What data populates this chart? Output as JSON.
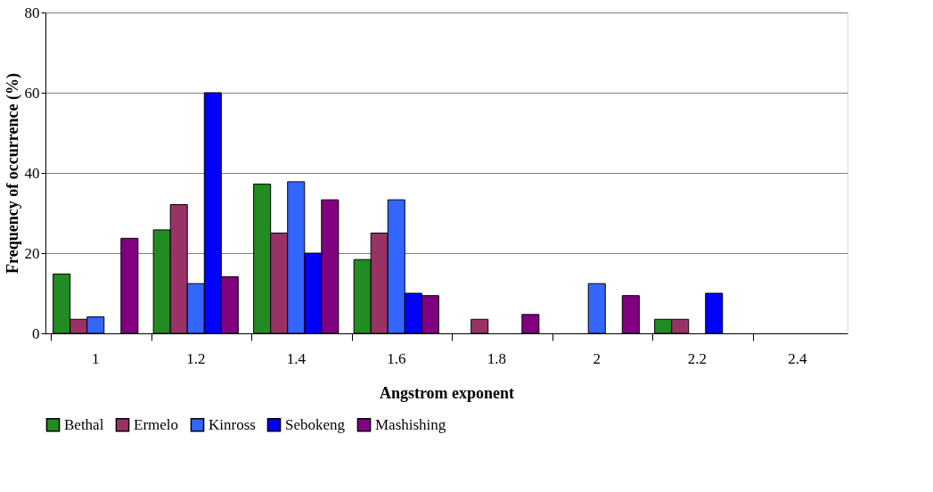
{
  "chart_data": {
    "type": "bar",
    "xlabel": "Angstrom exponent",
    "ylabel": "Frequency of occurrence (%)",
    "categories": [
      "1",
      "1.2",
      "1.4",
      "1.6",
      "1.8",
      "2",
      "2.2",
      "2.4"
    ],
    "series": [
      {
        "name": "Bethal",
        "color": "#228b22",
        "values": [
          14.8,
          25.8,
          37.2,
          18.4,
          null,
          null,
          3.5,
          null
        ]
      },
      {
        "name": "Ermelo",
        "color": "#993366",
        "values": [
          3.5,
          32.1,
          25,
          25,
          3.5,
          null,
          3.5,
          null
        ]
      },
      {
        "name": "Kinross",
        "color": "#3366ff",
        "values": [
          4.1,
          12.4,
          37.8,
          33.3,
          null,
          12.4,
          null,
          null
        ]
      },
      {
        "name": "Sebokeng",
        "color": "#0000ff",
        "values": [
          null,
          60,
          20,
          10,
          null,
          null,
          10,
          null
        ]
      },
      {
        "name": "Mashishing",
        "color": "#800080",
        "values": [
          23.7,
          14.1,
          33.3,
          9.4,
          4.7,
          9.4,
          null,
          null
        ]
      }
    ],
    "ylim": [
      0,
      80
    ],
    "yticks": [
      0,
      20,
      40,
      60,
      80
    ],
    "grid": "y",
    "legend": "bottom"
  }
}
